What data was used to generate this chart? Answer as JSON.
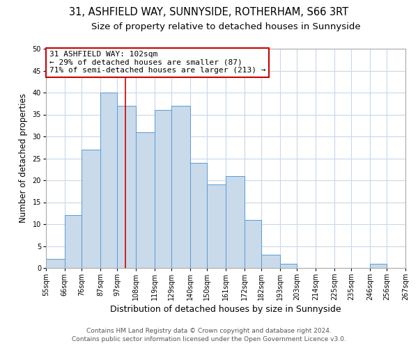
{
  "title_line1": "31, ASHFIELD WAY, SUNNYSIDE, ROTHERHAM, S66 3RT",
  "title_line2": "Size of property relative to detached houses in Sunnyside",
  "xlabel": "Distribution of detached houses by size in Sunnyside",
  "ylabel": "Number of detached properties",
  "bin_edges": [
    55,
    66,
    76,
    87,
    97,
    108,
    119,
    129,
    140,
    150,
    161,
    172,
    182,
    193,
    203,
    214,
    225,
    235,
    246,
    256,
    267
  ],
  "bin_labels": [
    "55sqm",
    "66sqm",
    "76sqm",
    "87sqm",
    "97sqm",
    "108sqm",
    "119sqm",
    "129sqm",
    "140sqm",
    "150sqm",
    "161sqm",
    "172sqm",
    "182sqm",
    "193sqm",
    "203sqm",
    "214sqm",
    "225sqm",
    "235sqm",
    "246sqm",
    "256sqm",
    "267sqm"
  ],
  "counts": [
    2,
    12,
    27,
    40,
    37,
    31,
    36,
    37,
    24,
    19,
    21,
    11,
    3,
    1,
    0,
    0,
    0,
    0,
    1,
    0
  ],
  "bar_facecolor": "#c9daea",
  "bar_edgecolor": "#5b9bd5",
  "property_line_x": 102,
  "property_line_color": "#cc0000",
  "annotation_line1": "31 ASHFIELD WAY: 102sqm",
  "annotation_line2": "← 29% of detached houses are smaller (87)",
  "annotation_line3": "71% of semi-detached houses are larger (213) →",
  "annotation_box_edgecolor": "#cc0000",
  "annotation_box_facecolor": "#ffffff",
  "ylim": [
    0,
    50
  ],
  "yticks": [
    0,
    5,
    10,
    15,
    20,
    25,
    30,
    35,
    40,
    45,
    50
  ],
  "footer_line1": "Contains HM Land Registry data © Crown copyright and database right 2024.",
  "footer_line2": "Contains public sector information licensed under the Open Government Licence v3.0.",
  "background_color": "#ffffff",
  "grid_color": "#c8d8e8",
  "title_fontsize": 10.5,
  "subtitle_fontsize": 9.5,
  "xlabel_fontsize": 9,
  "ylabel_fontsize": 8.5,
  "tick_fontsize": 7,
  "annotation_fontsize": 8,
  "footer_fontsize": 6.5
}
